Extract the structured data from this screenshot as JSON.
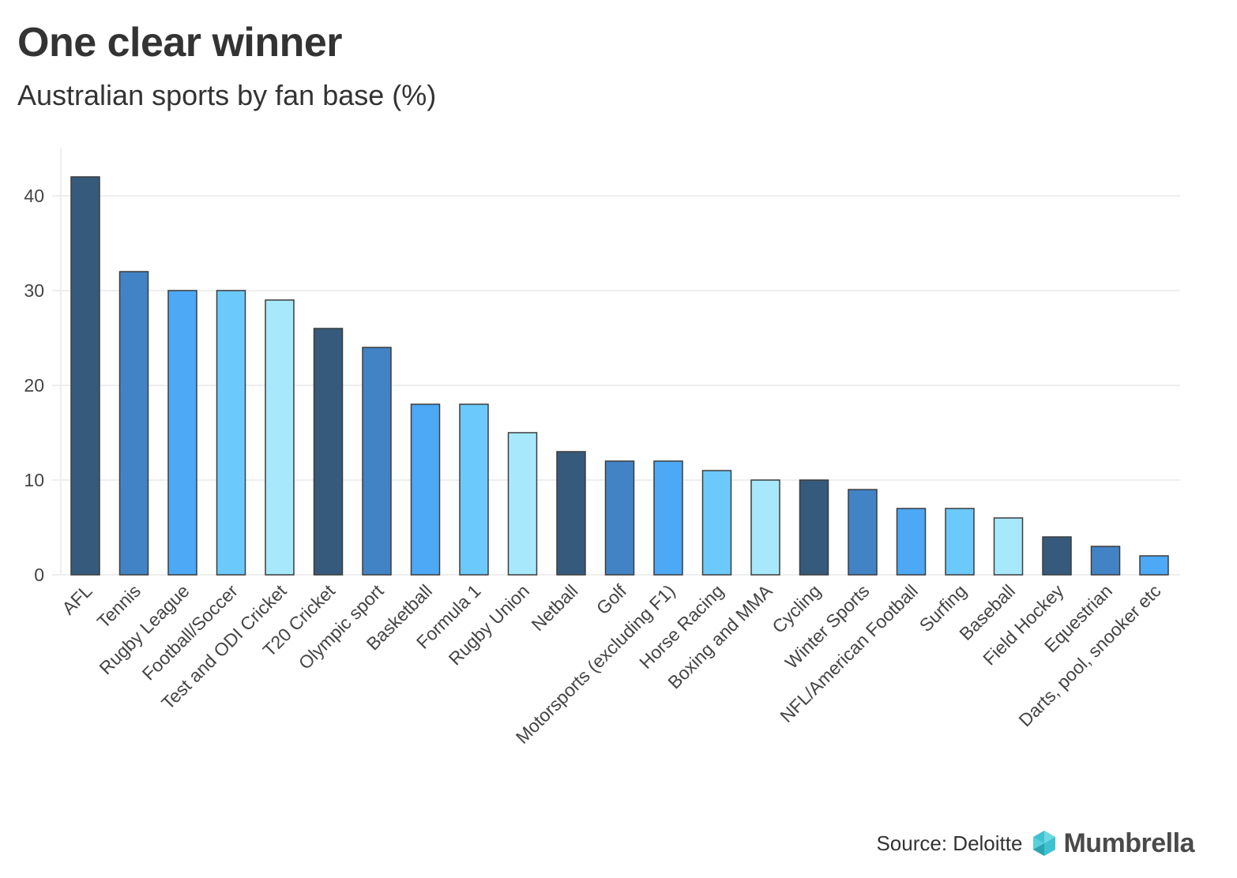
{
  "header": {
    "title": "One clear winner",
    "subtitle": "Australian sports by fan base (%)"
  },
  "footer": {
    "source": "Source: Deloitte",
    "brand": "Mumbrella"
  },
  "colors": {
    "palette": [
      "#355a7c",
      "#4283c5",
      "#4da8f5",
      "#6cc9fc",
      "#a7e8fd"
    ],
    "bar_stroke": "#3c3c3c",
    "grid": "#eeeeee",
    "axis_text": "#444444",
    "logo_mark": "#3fc1d0"
  },
  "chart_data": {
    "type": "bar",
    "title": "One clear winner",
    "subtitle": "Australian sports by fan base (%)",
    "xlabel": "",
    "ylabel": "",
    "ylim": [
      0,
      45
    ],
    "yticks": [
      0,
      10,
      20,
      30,
      40
    ],
    "grid": true,
    "legend": "none",
    "categories": [
      "AFL",
      "Tennis",
      "Rugby League",
      "Football/Soccer",
      "Test and ODI Cricket",
      "T20 Cricket",
      "Olympic sport",
      "Basketball",
      "Formula 1",
      "Rugby Union",
      "Netball",
      "Golf",
      "Motorsports (excluding F1)",
      "Horse Racing",
      "Boxing and MMA",
      "Cycling",
      "Winter Sports",
      "NFL/American Football",
      "Surfing",
      "Baseball",
      "Field Hockey",
      "Equestrian",
      "Darts, pool, snooker etc"
    ],
    "values": [
      42,
      32,
      30,
      30,
      29,
      26,
      24,
      18,
      18,
      15,
      13,
      12,
      12,
      11,
      10,
      10,
      9,
      7,
      7,
      6,
      4,
      3,
      2
    ]
  }
}
